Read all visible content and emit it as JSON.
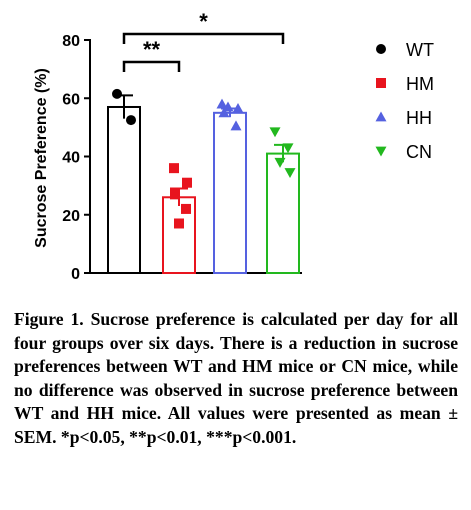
{
  "chart_data": {
    "type": "bar",
    "ylabel": "Sucrose Preference (%)",
    "ylim": [
      0,
      80
    ],
    "yticks": [
      0,
      20,
      40,
      60,
      80
    ],
    "errorbars": "SEM",
    "series": [
      {
        "name": "WT",
        "value": 57,
        "sem": 4,
        "color": "#000000",
        "marker": "circle",
        "points": [
          61.5,
          52.5
        ]
      },
      {
        "name": "HM",
        "value": 26,
        "sem": 3,
        "color": "#e8141e",
        "marker": "square",
        "points": [
          36,
          31,
          27,
          22,
          17
        ]
      },
      {
        "name": "HH",
        "value": 55,
        "sem": 1.5,
        "color": "#5561e0",
        "marker": "triangle-up",
        "points": [
          58,
          57,
          56.5,
          55,
          50.5
        ]
      },
      {
        "name": "CN",
        "value": 41,
        "sem": 3,
        "color": "#22b81e",
        "marker": "triangle-down",
        "points": [
          48.5,
          43,
          38,
          34.5
        ]
      }
    ],
    "significance": [
      {
        "from": "WT",
        "to": "HM",
        "label": "**"
      },
      {
        "from": "WT",
        "to": "CN",
        "label": "*"
      }
    ],
    "legend_position": "right"
  },
  "caption": "Figure 1. Sucrose preference is calculated per day for all four groups over six days. There is a reduction in sucrose preferences between WT and HM mice or CN mice, while no difference was observed in sucrose preference between WT and HH mice. All values were presented as mean ± SEM. *p<0.05, **p<0.01, ***p<0.001."
}
